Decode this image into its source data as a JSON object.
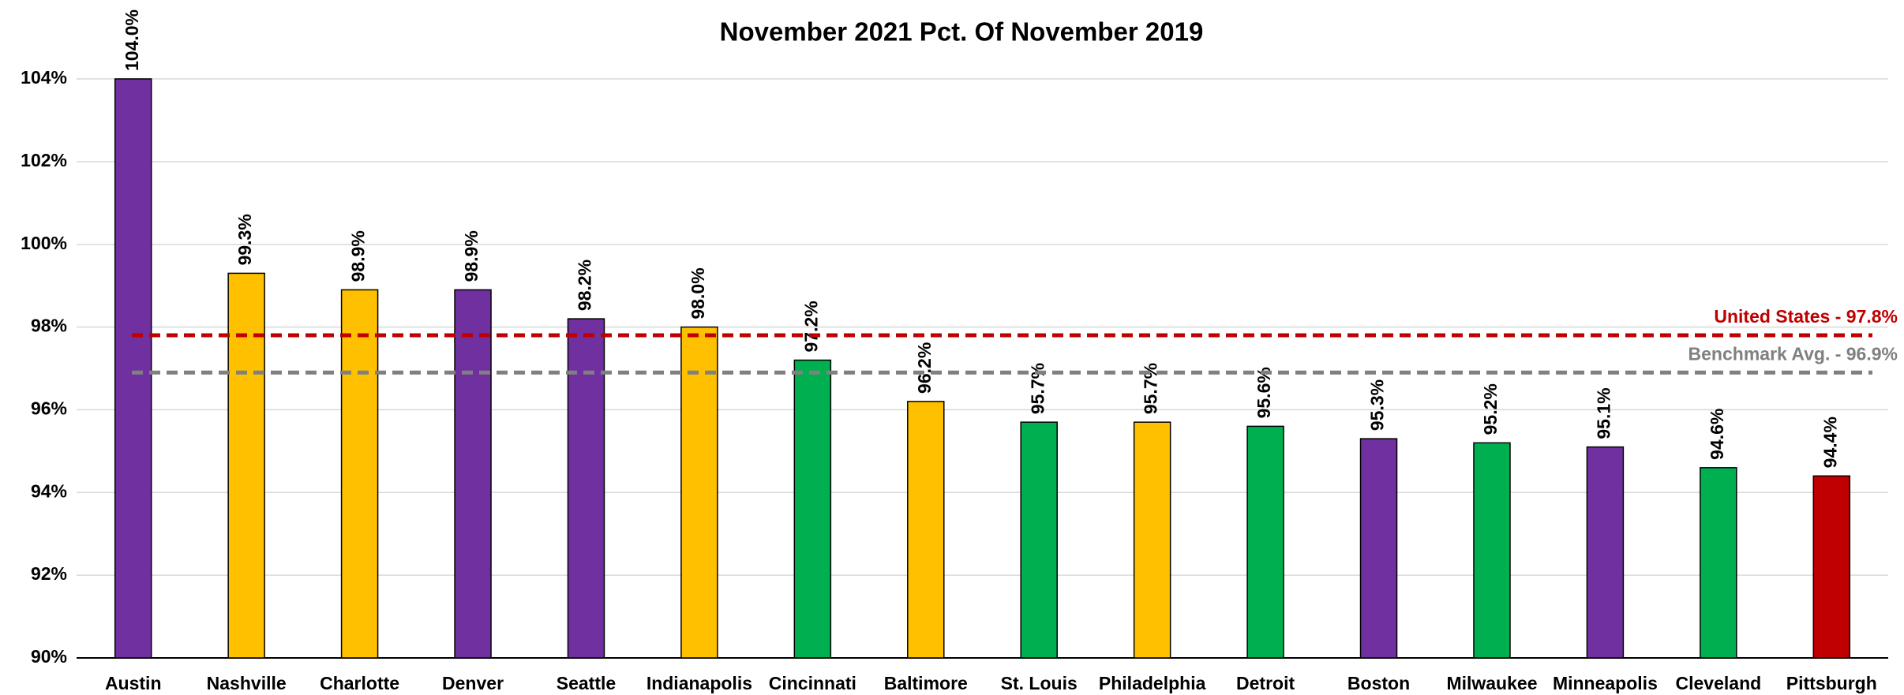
{
  "chart_data": {
    "type": "bar",
    "title": "November 2021 Pct. Of November 2019",
    "categories": [
      "Austin",
      "Nashville",
      "Charlotte",
      "Denver",
      "Seattle",
      "Indianapolis",
      "Cincinnati",
      "Baltimore",
      "St. Louis",
      "Philadelphia",
      "Detroit",
      "Boston",
      "Milwaukee",
      "Minneapolis",
      "Cleveland",
      "Pittsburgh"
    ],
    "values": [
      104.0,
      99.3,
      98.9,
      98.9,
      98.2,
      98.0,
      97.2,
      96.2,
      95.7,
      95.7,
      95.6,
      95.3,
      95.2,
      95.1,
      94.6,
      94.4
    ],
    "value_labels": [
      "104.0%",
      "99.3%",
      "98.9%",
      "98.9%",
      "98.2%",
      "98.0%",
      "97.2%",
      "96.2%",
      "95.7%",
      "95.7%",
      "95.6%",
      "95.3%",
      "95.2%",
      "95.1%",
      "94.6%",
      "94.4%"
    ],
    "colors": [
      "#7030a0",
      "#ffc000",
      "#ffc000",
      "#7030a0",
      "#7030a0",
      "#ffc000",
      "#00b050",
      "#ffc000",
      "#00b050",
      "#ffc000",
      "#00b050",
      "#7030a0",
      "#00b050",
      "#7030a0",
      "#00b050",
      "#c00000"
    ],
    "reference_lines": [
      {
        "label": "United States - 97.8%",
        "value": 97.8,
        "color": "#c00000"
      },
      {
        "label": "Benchmark Avg. - 96.9%",
        "value": 96.9,
        "color": "#808080"
      }
    ],
    "ylim": [
      90,
      104
    ],
    "yticks": [
      {
        "value": 90,
        "label": "90%"
      },
      {
        "value": 92,
        "label": "92%"
      },
      {
        "value": 94,
        "label": "94%"
      },
      {
        "value": 96,
        "label": "96%"
      },
      {
        "value": 98,
        "label": "98%"
      },
      {
        "value": 100,
        "label": "100%"
      },
      {
        "value": 102,
        "label": "102%"
      },
      {
        "value": 104,
        "label": "104%"
      }
    ],
    "grid": true
  }
}
